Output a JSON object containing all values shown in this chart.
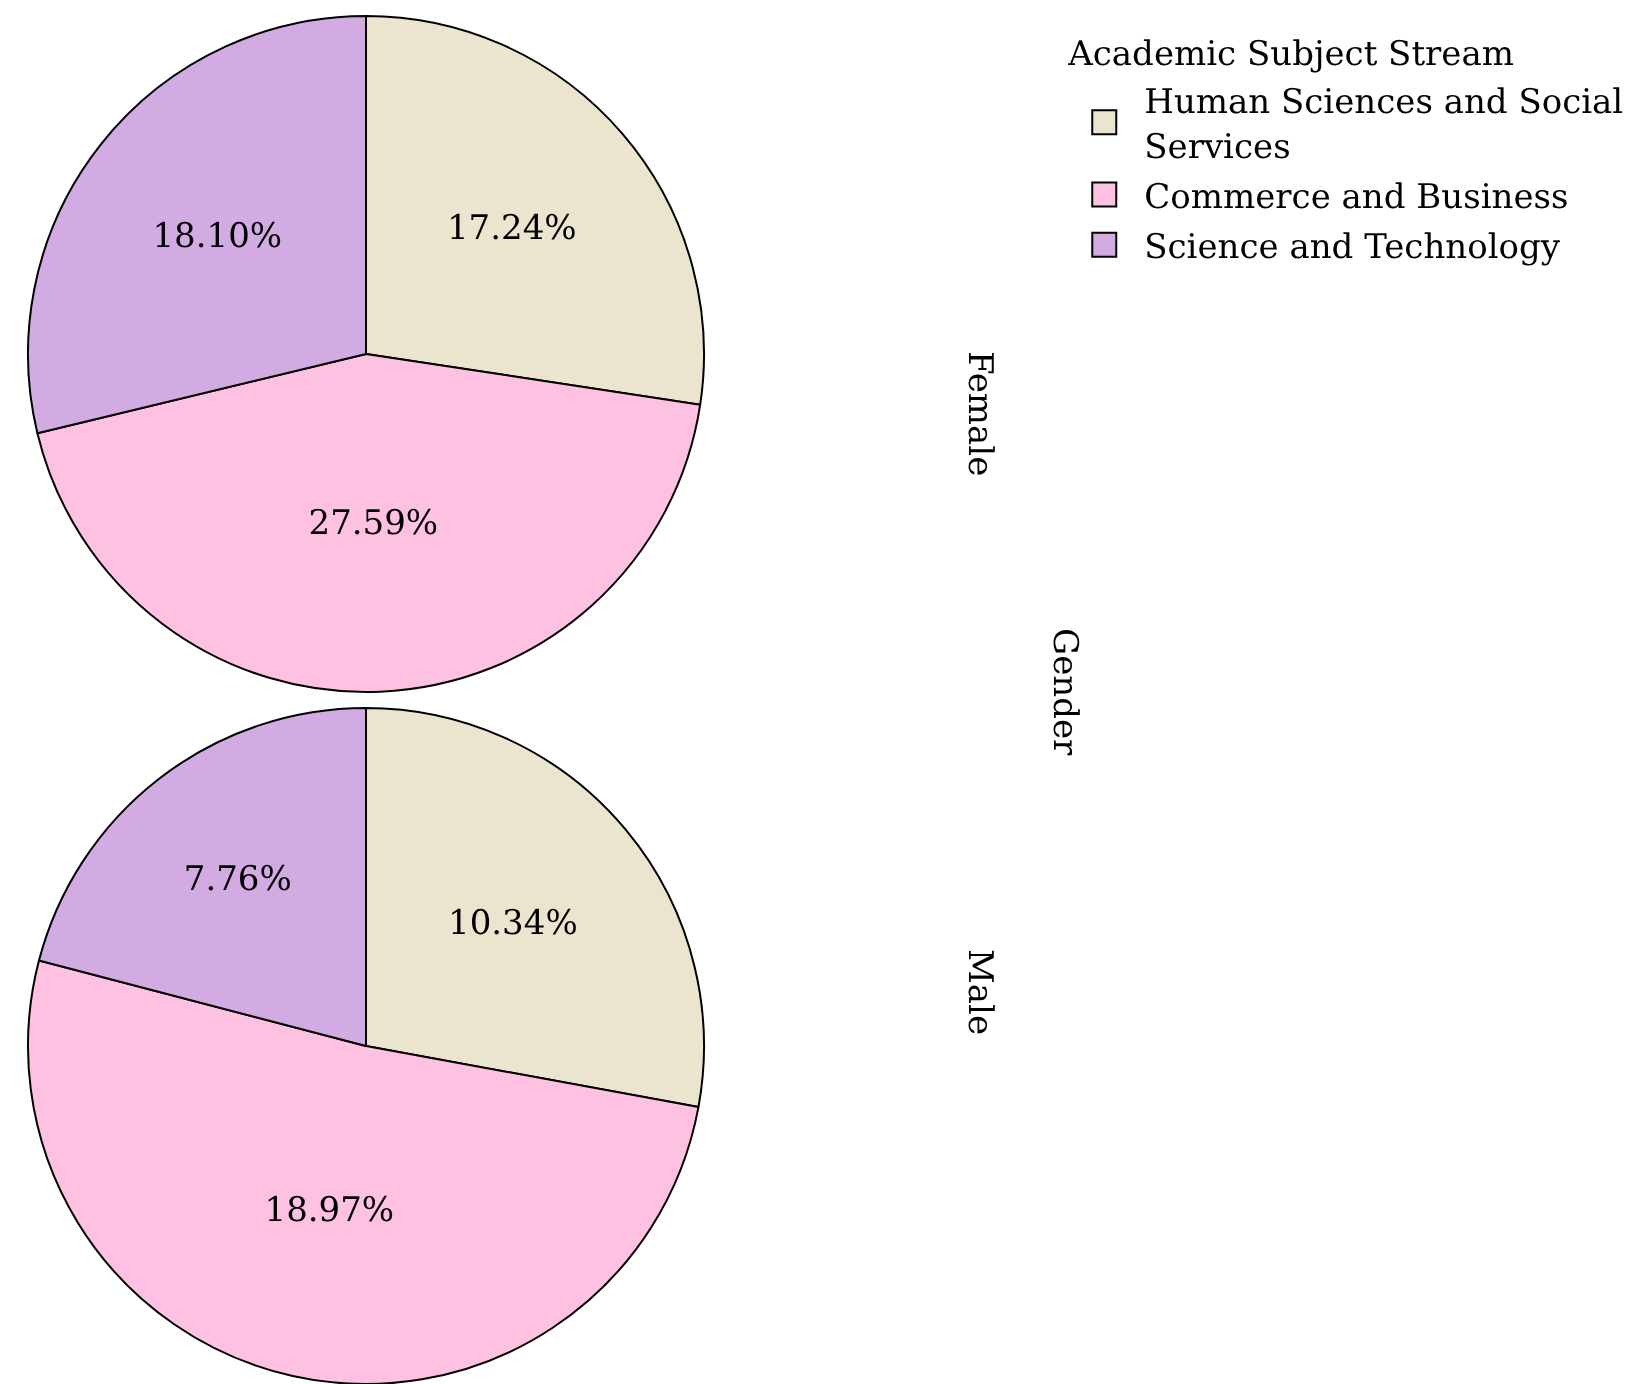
{
  "chart_data": {
    "type": "pie",
    "legend_title": "Academic Subject Stream",
    "annotations": [
      "Gender"
    ],
    "legend": "top right",
    "categories": [
      "Human Sciences and Social Services",
      "Commerce and Business",
      "Science and Technology"
    ],
    "colors": [
      "#ebe5d0",
      "#ffc1e1",
      "#d1abe2"
    ],
    "series": [
      {
        "name": "Female",
        "values": [
          17.24,
          27.59,
          18.1
        ],
        "value_labels": [
          "17.24%",
          "27.59%",
          "18.10%"
        ]
      },
      {
        "name": "Male",
        "values": [
          10.34,
          18.97,
          7.76
        ],
        "value_labels": [
          "10.34%",
          "18.97%",
          "7.76%"
        ]
      }
    ]
  }
}
